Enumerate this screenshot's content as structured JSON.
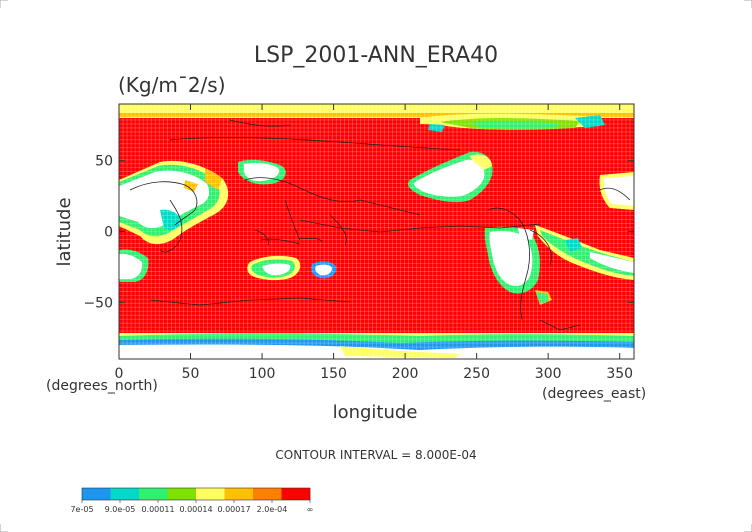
{
  "chart_data": {
    "type": "heatmap",
    "title": "LSP_2001-ANN_ERA40",
    "units": "(Kg/m¯2/s)",
    "xlabel": "longitude",
    "ylabel": "latitude",
    "x_unit_label": "(degrees_east)",
    "y_unit_label": "(degrees_north)",
    "xlim": [
      0,
      360
    ],
    "ylim": [
      -90,
      90
    ],
    "x_ticks": [
      0,
      50,
      100,
      150,
      200,
      250,
      300,
      350
    ],
    "y_ticks": [
      -50,
      0,
      50
    ],
    "grid": true,
    "contour_interval_text": "CONTOUR INTERVAL = 8.000E-04",
    "colorbar": {
      "labels": [
        "7e-05",
        "9.0e-05",
        "0.00011",
        "0.00014",
        "0.00017",
        "2.0e-04",
        "∞"
      ],
      "colors": [
        "#1e96f0",
        "#00d8c8",
        "#30f070",
        "#80e000",
        "#ffff60",
        "#ffc000",
        "#ff8000",
        "#ff0000"
      ]
    },
    "background_color": "#ff0000",
    "low_color": "#ffffff"
  }
}
